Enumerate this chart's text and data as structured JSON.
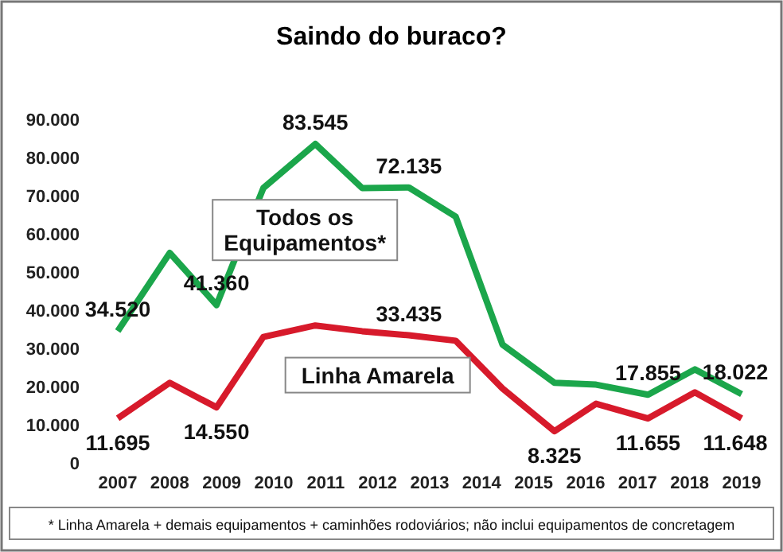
{
  "chart_data": {
    "type": "line",
    "title": "Saindo do buraco?",
    "xlim": [
      2007,
      2019
    ],
    "xticks": [
      2007,
      2008,
      2009,
      2010,
      2011,
      2012,
      2013,
      2014,
      2015,
      2016,
      2017,
      2018,
      2019
    ],
    "ylim": [
      0,
      90000
    ],
    "yticks": [
      {
        "value": 0,
        "label": "0"
      },
      {
        "value": 10000,
        "label": "10.000"
      },
      {
        "value": 20000,
        "label": "20.000"
      },
      {
        "value": 30000,
        "label": "30.000"
      },
      {
        "value": 40000,
        "label": "40.000"
      },
      {
        "value": 50000,
        "label": "50.000"
      },
      {
        "value": 60000,
        "label": "60.000"
      },
      {
        "value": 70000,
        "label": "70.000"
      },
      {
        "value": 80000,
        "label": "80.000"
      },
      {
        "value": 90000,
        "label": "90.000"
      }
    ],
    "x": [
      2007,
      2008,
      2008.9,
      2009.8,
      2010.8,
      2011.7,
      2012.6,
      2013.5,
      2014.4,
      2015.4,
      2016.2,
      2017.2,
      2018.1,
      2019
    ],
    "series": [
      {
        "name": "Todos os Equipamentos*",
        "color": "#1ba64b",
        "values": [
          34520,
          55000,
          41360,
          72000,
          83545,
          72000,
          72135,
          64500,
          31000,
          21000,
          20500,
          17855,
          24500,
          18022
        ],
        "value_labels": [
          "34.520",
          null,
          "41.360",
          null,
          "83.545",
          null,
          "72.135",
          null,
          null,
          null,
          null,
          "17.855",
          null,
          "18.022"
        ]
      },
      {
        "name": "Linha Amarela",
        "color": "#d71a2b",
        "values": [
          11695,
          21000,
          14550,
          33000,
          36000,
          34500,
          33435,
          32000,
          19500,
          8325,
          15500,
          11655,
          18500,
          11648
        ],
        "value_labels": [
          "11.695",
          null,
          "14.550",
          null,
          null,
          null,
          "33.435",
          null,
          null,
          "8.325",
          null,
          "11.655",
          null,
          "11.648"
        ]
      }
    ],
    "grid": false,
    "marker": "none",
    "line_style": "solid",
    "annotations": [
      "* Linha Amarela + demais equipamentos + caminhões rodoviários; não inclui equipamentos de concretagem"
    ]
  }
}
